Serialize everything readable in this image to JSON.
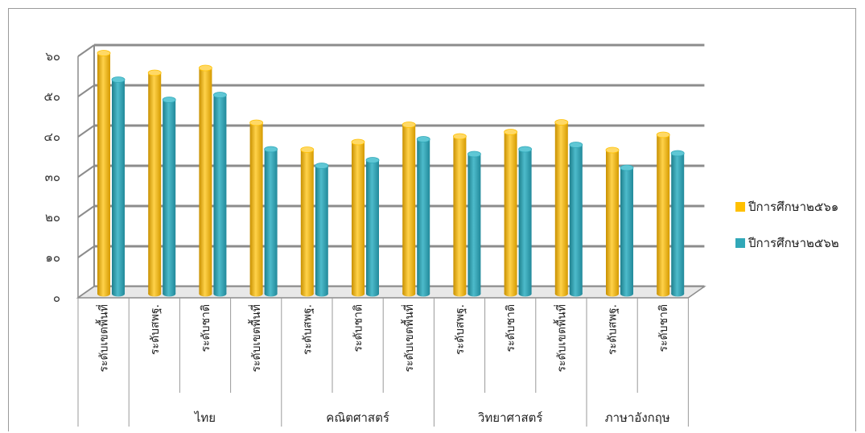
{
  "chart_data": {
    "type": "bar",
    "title": "",
    "xlabel": "",
    "ylabel": "",
    "ylim": [
      0,
      60
    ],
    "y_ticks": [
      "๐",
      "๑๐",
      "๒๐",
      "๓๐",
      "๔๐",
      "๕๐",
      "๖๐"
    ],
    "y_tick_values": [
      0,
      10,
      20,
      30,
      40,
      50,
      60
    ],
    "grid": true,
    "legend_position": "right",
    "categories": [
      "ระดับเขตพื้นที่",
      "ระดับสพฐ.",
      "ระดับชาติ",
      "ระดับเขตพื้นที่",
      "ระดับสพฐ.",
      "ระดับชาติ",
      "ระดับเขตพื้นที่",
      "ระดับสพฐ.",
      "ระดับชาติ",
      "ระดับเขตพื้นที่",
      "ระดับสพฐ.",
      "ระดับชาติ"
    ],
    "groups": [
      {
        "label": "",
        "span": 1
      },
      {
        "label": "ไทย",
        "span": 3
      },
      {
        "label": "คณิตศาสตร์",
        "span": 3
      },
      {
        "label": "วิทยาศาสตร์",
        "span": 3
      },
      {
        "label": "ภาษาอังกฤษ",
        "span": 2
      }
    ],
    "series": [
      {
        "name": "ปีการศึกษา๒๕๖๑",
        "color": "#FFC000",
        "values": [
          60.2,
          55.3,
          56.5,
          42.9,
          36.2,
          38.1,
          42.4,
          39.5,
          40.6,
          43.0,
          36.1,
          39.9
        ]
      },
      {
        "name": "ปีการศึกษา๒๕๖๒",
        "color": "#31A8B8",
        "values": [
          53.6,
          48.6,
          49.8,
          36.3,
          32.2,
          33.6,
          38.8,
          35.1,
          36.3,
          37.4,
          31.7,
          35.3
        ]
      }
    ]
  }
}
